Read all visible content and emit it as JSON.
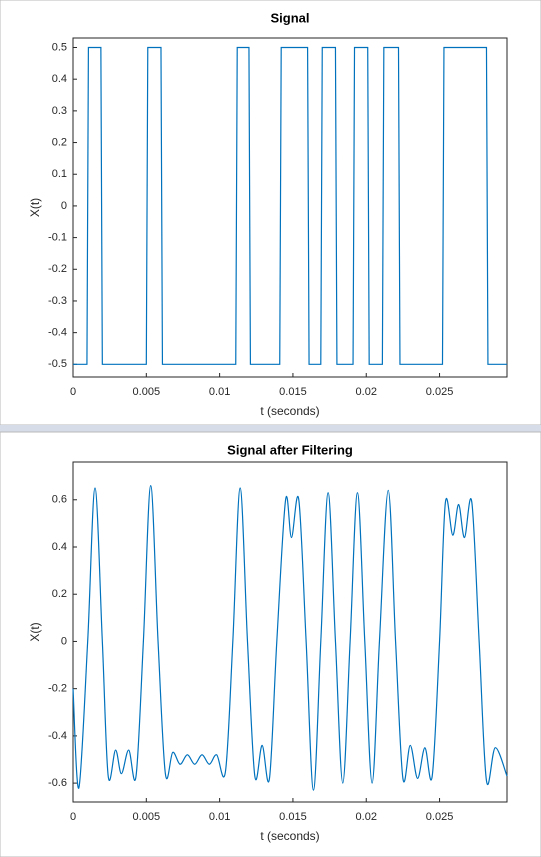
{
  "chart_data": [
    {
      "type": "line",
      "title": "Signal",
      "xlabel": "t (seconds)",
      "ylabel": "X(t)",
      "xlim": [
        0,
        0.0296
      ],
      "ylim": [
        -0.54,
        0.53
      ],
      "xticks": [
        0,
        0.005,
        0.01,
        0.015,
        0.02,
        0.025
      ],
      "yticks": [
        -0.5,
        -0.4,
        -0.3,
        -0.2,
        -0.1,
        0,
        0.1,
        0.2,
        0.3,
        0.4,
        0.5
      ],
      "series": [
        {
          "color": "#0072bd",
          "x": [
            0,
            0.00095,
            0.00105,
            0.0019,
            0.002,
            0.005,
            0.0051,
            0.006,
            0.0061,
            0.0111,
            0.0112,
            0.012,
            0.0121,
            0.0141,
            0.0142,
            0.016,
            0.0161,
            0.0169,
            0.017,
            0.0179,
            0.018,
            0.0191,
            0.0192,
            0.0201,
            0.0202,
            0.0211,
            0.0212,
            0.0222,
            0.0223,
            0.0252,
            0.0253,
            0.0282,
            0.0283,
            0.0296
          ],
          "values": [
            -0.5,
            -0.5,
            0.5,
            0.5,
            -0.5,
            -0.5,
            0.5,
            0.5,
            -0.5,
            -0.5,
            0.5,
            0.5,
            -0.5,
            -0.5,
            0.5,
            0.5,
            -0.5,
            -0.5,
            0.5,
            0.5,
            -0.5,
            -0.5,
            0.5,
            0.5,
            -0.5,
            -0.5,
            0.5,
            0.5,
            -0.5,
            -0.5,
            0.5,
            0.5,
            -0.5,
            -0.5
          ]
        }
      ]
    },
    {
      "type": "line",
      "smooth": true,
      "title": "Signal after Filtering",
      "xlabel": "t (seconds)",
      "ylabel": "X(t)",
      "xlim": [
        0,
        0.0296
      ],
      "ylim": [
        -0.68,
        0.76
      ],
      "xticks": [
        0,
        0.005,
        0.01,
        0.015,
        0.02,
        0.025
      ],
      "yticks": [
        -0.6,
        -0.4,
        -0.2,
        0,
        0.2,
        0.4,
        0.6
      ],
      "series": [
        {
          "color": "#0072bd",
          "x": [
            0,
            0.0004,
            0.001,
            0.0015,
            0.002,
            0.0024,
            0.0029,
            0.0033,
            0.0038,
            0.0043,
            0.0048,
            0.0053,
            0.0058,
            0.0063,
            0.0068,
            0.0073,
            0.0078,
            0.0083,
            0.0088,
            0.0093,
            0.0098,
            0.0104,
            0.0109,
            0.0114,
            0.0119,
            0.0124,
            0.0129,
            0.0134,
            0.0139,
            0.0145,
            0.0149,
            0.0154,
            0.0159,
            0.0164,
            0.0169,
            0.0174,
            0.0179,
            0.0184,
            0.0189,
            0.0194,
            0.0199,
            0.0204,
            0.0209,
            0.0215,
            0.022,
            0.0225,
            0.023,
            0.0235,
            0.024,
            0.0245,
            0.025,
            0.0254,
            0.0259,
            0.0263,
            0.0267,
            0.0272,
            0.0277,
            0.0282,
            0.0288,
            0.0296
          ],
          "values": [
            -0.2,
            -0.62,
            0,
            0.65,
            0,
            -0.57,
            -0.46,
            -0.56,
            -0.46,
            -0.57,
            0,
            0.66,
            0,
            -0.56,
            -0.47,
            -0.52,
            -0.48,
            -0.52,
            -0.48,
            -0.52,
            -0.48,
            -0.55,
            0,
            0.65,
            0,
            -0.57,
            -0.44,
            -0.58,
            0,
            0.6,
            0.44,
            0.6,
            0,
            -0.63,
            0,
            0.63,
            0,
            -0.6,
            0,
            0.63,
            0,
            -0.6,
            0,
            0.64,
            0,
            -0.58,
            -0.44,
            -0.58,
            -0.45,
            -0.57,
            0,
            0.59,
            0.45,
            0.58,
            0.44,
            0.59,
            0,
            -0.59,
            -0.45,
            -0.57
          ]
        }
      ]
    }
  ]
}
